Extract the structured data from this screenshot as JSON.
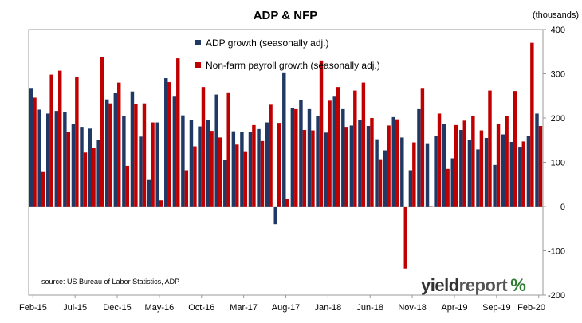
{
  "chart_data": {
    "type": "bar",
    "title": "ADP & NFP",
    "units_label": "(thousands)",
    "source_note": "source: US Bureau of Labor Statistics, ADP",
    "logo": {
      "word1": "yield",
      "word2": "report",
      "symbol": "%"
    },
    "ylim": [
      -200,
      400
    ],
    "yticks": [
      400,
      300,
      200,
      100,
      0,
      -100,
      -200
    ],
    "grid": false,
    "legend_placement": "top-center",
    "x_tick_labels": [
      "Feb-15",
      "Jul-15",
      "Dec-15",
      "May-16",
      "Oct-16",
      "Mar-17",
      "Aug-17",
      "Jan-18",
      "Jun-18",
      "Nov-18",
      "Apr-19",
      "Sep-19",
      "Feb-20"
    ],
    "categories": [
      "Feb-15",
      "Mar-15",
      "Apr-15",
      "May-15",
      "Jun-15",
      "Jul-15",
      "Aug-15",
      "Sep-15",
      "Oct-15",
      "Nov-15",
      "Dec-15",
      "Jan-16",
      "Feb-16",
      "Mar-16",
      "Apr-16",
      "May-16",
      "Jun-16",
      "Jul-16",
      "Aug-16",
      "Sep-16",
      "Oct-16",
      "Nov-16",
      "Dec-16",
      "Jan-17",
      "Feb-17",
      "Mar-17",
      "Apr-17",
      "May-17",
      "Jun-17",
      "Jul-17",
      "Aug-17",
      "Sep-17",
      "Oct-17",
      "Nov-17",
      "Dec-17",
      "Jan-18",
      "Feb-18",
      "Mar-18",
      "Apr-18",
      "May-18",
      "Jun-18",
      "Jul-18",
      "Aug-18",
      "Sep-18",
      "Oct-18",
      "Nov-18",
      "Dec-18",
      "Jan-19",
      "Feb-19",
      "Mar-19",
      "Apr-19",
      "May-19",
      "Jun-19",
      "Jul-19",
      "Aug-19",
      "Sep-19",
      "Oct-19",
      "Nov-19",
      "Dec-19",
      "Jan-20",
      "Feb-20"
    ],
    "series": [
      {
        "name": "ADP growth (seasonally adj.)",
        "color": "#1f3864",
        "values": [
          268,
          219,
          210,
          216,
          214,
          186,
          180,
          176,
          150,
          242,
          257,
          205,
          260,
          158,
          60,
          190,
          290,
          250,
          206,
          195,
          181,
          195,
          253,
          105,
          170,
          168,
          169,
          175,
          190,
          -40,
          303,
          222,
          240,
          220,
          205,
          167,
          250,
          220,
          183,
          196,
          182,
          152,
          127,
          202,
          156,
          82,
          220,
          143,
          159,
          186,
          109,
          173,
          150,
          129,
          155,
          94,
          163,
          146,
          135,
          160,
          210
        ]
      },
      {
        "name": "Non-farm payroll growth (seasonally adj.)",
        "color": "#c00000",
        "values": [
          246,
          78,
          298,
          307,
          168,
          293,
          122,
          132,
          338,
          233,
          280,
          92,
          232,
          233,
          190,
          14,
          281,
          335,
          82,
          136,
          270,
          171,
          156,
          258,
          140,
          125,
          184,
          148,
          230,
          189,
          18,
          220,
          173,
          172,
          330,
          239,
          270,
          180,
          262,
          280,
          200,
          107,
          183,
          197,
          -140,
          145,
          268,
          1,
          210,
          85,
          184,
          194,
          205,
          172,
          262,
          187,
          204,
          261,
          147,
          370,
          182
        ]
      }
    ]
  }
}
